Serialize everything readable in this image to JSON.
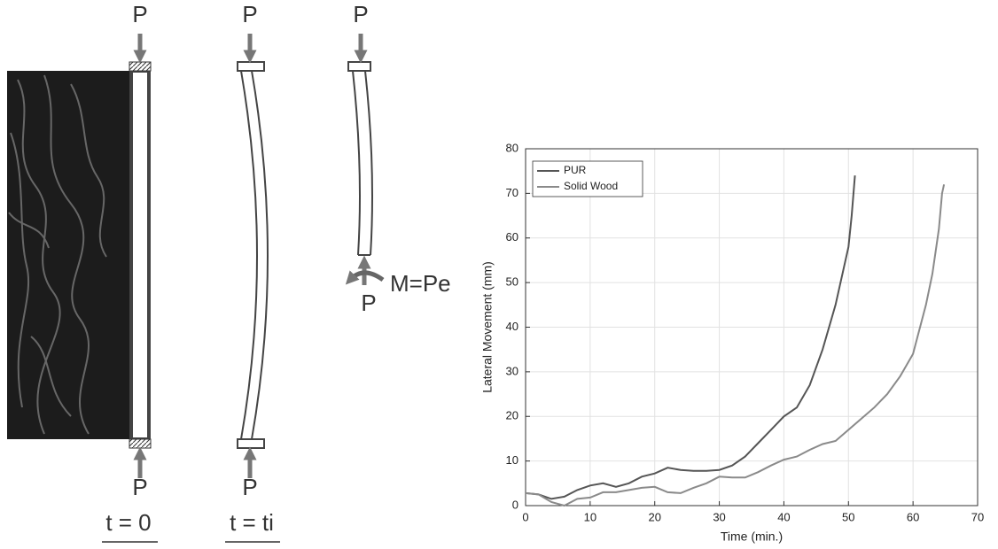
{
  "diagram": {
    "loads": [
      "P",
      "P",
      "P",
      "P",
      "P",
      "P"
    ],
    "moment": "M=Pe",
    "stages": [
      "t = 0",
      "t = ti"
    ]
  },
  "chart_data": {
    "type": "line",
    "xlabel": "Time (min.)",
    "ylabel": "Lateral Movement (mm)",
    "xlim": [
      0,
      70
    ],
    "ylim": [
      0,
      80
    ],
    "xticks": [
      0,
      10,
      20,
      30,
      40,
      50,
      60,
      70
    ],
    "yticks": [
      0,
      10,
      20,
      30,
      40,
      50,
      60,
      70,
      80
    ],
    "grid": true,
    "legend": "upper-left",
    "series": [
      {
        "name": "PUR",
        "color": "#555555",
        "x": [
          0,
          2,
          4,
          6,
          8,
          10,
          12,
          14,
          16,
          18,
          20,
          22,
          24,
          26,
          28,
          30,
          32,
          34,
          36,
          38,
          40,
          42,
          44,
          46,
          48,
          50,
          50.5,
          51
        ],
        "values": [
          2.8,
          2.5,
          1.5,
          2,
          3.5,
          4.5,
          5,
          4.2,
          5,
          6.5,
          7.2,
          8.5,
          8,
          7.8,
          7.8,
          8,
          9,
          11,
          14,
          17,
          20,
          22,
          27,
          35,
          45,
          58,
          65,
          74
        ]
      },
      {
        "name": "Solid Wood",
        "color": "#8a8a8a",
        "x": [
          0,
          2,
          4,
          6,
          8,
          10,
          12,
          14,
          16,
          18,
          20,
          22,
          24,
          26,
          28,
          30,
          32,
          34,
          36,
          38,
          40,
          42,
          44,
          46,
          48,
          50,
          52,
          54,
          56,
          58,
          60,
          62,
          63,
          64,
          64.5,
          64.8
        ],
        "values": [
          2.8,
          2.5,
          0.8,
          0,
          1.5,
          1.8,
          3,
          3,
          3.5,
          4,
          4.2,
          3,
          2.8,
          4,
          5,
          6.5,
          6.3,
          6.3,
          7.5,
          9,
          10.3,
          11,
          12.5,
          13.8,
          14.5,
          17,
          19.5,
          22,
          25,
          29,
          34,
          45,
          52,
          62,
          70,
          72
        ]
      }
    ]
  }
}
